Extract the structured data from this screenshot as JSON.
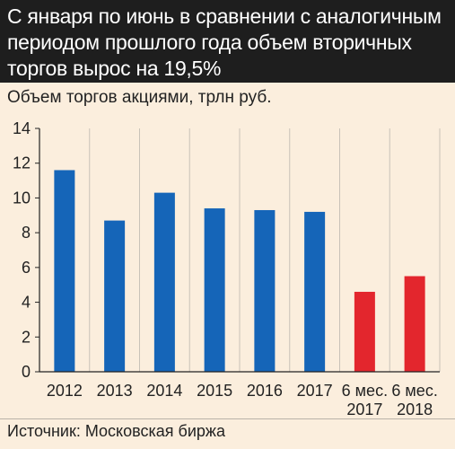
{
  "title": "С января по июнь в сравнении с аналогичным периодом прошлого года объем вторичных торгов вырос на 19,5%",
  "source": "Источник: Московская биржа",
  "chart_data": {
    "type": "bar",
    "ylabel": "Объем торгов акциями, трлн руб.",
    "ylim": [
      0,
      14
    ],
    "yticks": [
      0,
      2,
      4,
      6,
      8,
      10,
      12,
      14
    ],
    "grid": "vertical gridlines at category boundaries",
    "categories": [
      [
        "2012"
      ],
      [
        "2013"
      ],
      [
        "2014"
      ],
      [
        "2015"
      ],
      [
        "2016"
      ],
      [
        "2017"
      ],
      [
        "6 мес.",
        "2017"
      ],
      [
        "6 мес.",
        "2018"
      ]
    ],
    "values": [
      11.6,
      8.7,
      10.3,
      9.4,
      9.3,
      9.2,
      4.6,
      5.5
    ],
    "colors": [
      "#1565b8",
      "#1565b8",
      "#1565b8",
      "#1565b8",
      "#1565b8",
      "#1565b8",
      "#e3262d",
      "#e3262d"
    ]
  }
}
